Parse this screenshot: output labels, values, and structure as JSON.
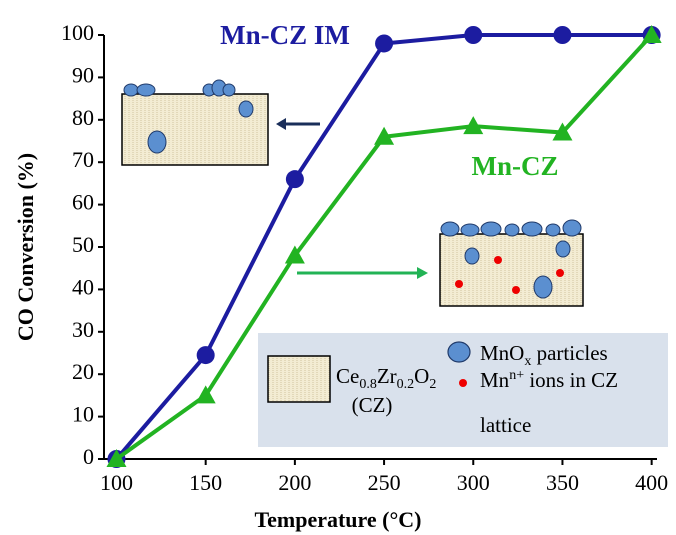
{
  "chart_data": {
    "type": "line",
    "x_label": "Temperature (°C)",
    "y_label": "CO Conversion (%)",
    "x": [
      100,
      150,
      200,
      250,
      300,
      350,
      400
    ],
    "series": [
      {
        "name": "Mn-CZ IM",
        "color": "#1c1ca0",
        "marker": "circle",
        "values": [
          0,
          24.5,
          66,
          98,
          100,
          100,
          100
        ]
      },
      {
        "name": "Mn-CZ",
        "color": "#22b322",
        "marker": "triangle",
        "values": [
          0,
          15,
          48,
          76,
          78.5,
          77,
          100
        ]
      }
    ],
    "xlim": [
      93,
      403
    ],
    "ylim": [
      0,
      100
    ],
    "xticks": [
      100,
      150,
      200,
      250,
      300,
      350,
      400
    ],
    "yticks": [
      0,
      10,
      20,
      30,
      40,
      50,
      60,
      70,
      80,
      90,
      100
    ],
    "legend": {
      "support": [
        "Ce",
        "0.8",
        "Zr",
        "0.2",
        "O",
        "2"
      ],
      "support_abbr": "(CZ)",
      "particles": [
        "MnO",
        "x",
        " particles"
      ],
      "ions": [
        "Mn",
        "n+",
        " ions in CZ"
      ],
      "ions_line2": "lattice"
    }
  }
}
